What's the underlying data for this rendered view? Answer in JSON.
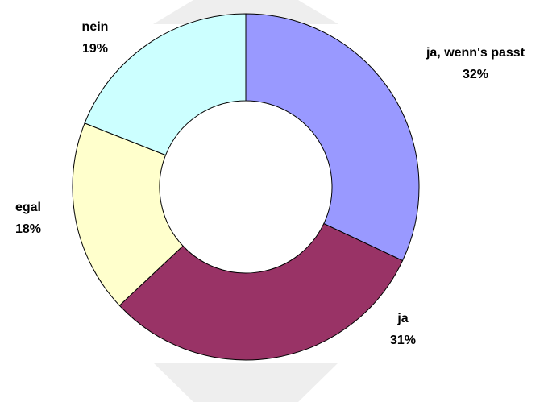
{
  "chart_data": {
    "type": "donut",
    "categories": [
      "ja, wenn's passt",
      "ja",
      "egal",
      "nein"
    ],
    "values": [
      32,
      31,
      18,
      19
    ],
    "value_labels": [
      "32%",
      "31%",
      "18%",
      "19%"
    ],
    "colors": [
      "#9999ff",
      "#993366",
      "#ffffcc",
      "#ccffff"
    ]
  }
}
